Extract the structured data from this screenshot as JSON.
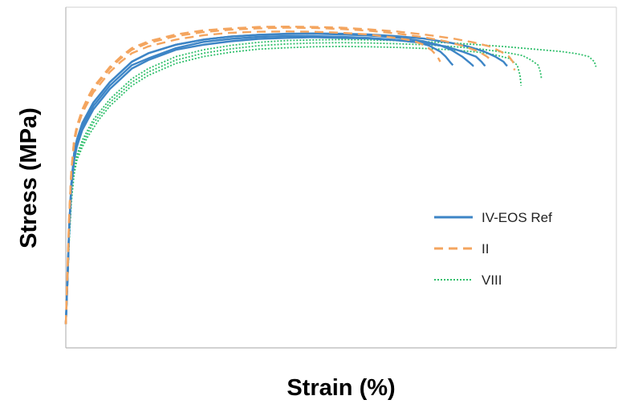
{
  "colors": {
    "IV-EOS Ref": "#3d85c6",
    "II": "#f4a55f",
    "VIII": "#2fbf6b"
  },
  "chart_data": {
    "type": "line",
    "title": "",
    "xlabel": "Strain (%)",
    "ylabel": "Stress (MPa)",
    "x_ticks": "none",
    "y_ticks": "none",
    "xlim": [
      0,
      100
    ],
    "ylim": [
      0,
      100
    ],
    "grid": false,
    "legend_position": "right",
    "series": [
      {
        "name": "IV-EOS Ref",
        "style": "solid",
        "specimens": [
          {
            "x": [
              0,
              0.3,
              0.6,
              1,
              1.5,
              2,
              3,
              4,
              5,
              6,
              8,
              10,
              12,
              15,
              20,
              25,
              30,
              35,
              40,
              45,
              50,
              55,
              60,
              64,
              66,
              68,
              69,
              70,
              70.3
            ],
            "y": [
              7,
              20,
              35,
              48,
              56,
              60,
              65,
              68,
              71,
              73,
              77,
              80,
              83,
              85,
              88,
              89.8,
              90.7,
              91.3,
              91.5,
              91.5,
              91.3,
              91,
              90.4,
              89.7,
              88.7,
              87,
              85.5,
              83.5,
              83
            ]
          },
          {
            "x": [
              0,
              0.3,
              0.6,
              1,
              1.5,
              2,
              3,
              4,
              5,
              6,
              8,
              10,
              12,
              15,
              20,
              25,
              30,
              35,
              40,
              45,
              50,
              55,
              60,
              65,
              68,
              70,
              72,
              73.5,
              74,
              74.1
            ],
            "y": [
              7,
              20,
              35,
              48,
              57,
              61,
              66,
              69,
              72,
              74,
              78,
              81,
              84,
              86.5,
              89,
              90.5,
              91.4,
              91.9,
              92.1,
              92.2,
              92,
              91.7,
              91.1,
              90,
              88.8,
              87.5,
              85.5,
              83.5,
              82.8,
              82.8
            ]
          },
          {
            "x": [
              0,
              0.3,
              0.6,
              1,
              1.5,
              2,
              3,
              4,
              5,
              6,
              8,
              10,
              12,
              15,
              20,
              25,
              30,
              35,
              40,
              45,
              50,
              55,
              60,
              65,
              69,
              72,
              74.5,
              75.5,
              76,
              76.2
            ],
            "y": [
              7,
              20,
              34,
              47,
              55,
              59,
              64,
              67,
              70,
              72,
              76,
              79,
              82,
              84.5,
              87.5,
              89,
              90,
              90.7,
              91,
              91.2,
              91,
              90.8,
              90.3,
              89.5,
              88.5,
              87,
              85.5,
              84,
              83,
              82.8
            ]
          },
          {
            "x": [
              0,
              0.3,
              0.6,
              1,
              1.5,
              2,
              3,
              4,
              5,
              6,
              8,
              10,
              12,
              15,
              20,
              25,
              30,
              35,
              40,
              45,
              50,
              55,
              60,
              65,
              70,
              73,
              76,
              78,
              79.5,
              80,
              80.2
            ],
            "y": [
              7,
              20,
              35,
              48,
              57,
              61,
              66,
              69,
              72,
              74,
              78,
              81,
              84,
              86.5,
              89,
              90.5,
              91.4,
              91.9,
              92.2,
              92.3,
              92.2,
              92,
              91.5,
              90.8,
              89.5,
              88.5,
              87,
              85.5,
              84,
              83,
              82.8
            ]
          }
        ]
      },
      {
        "name": "II",
        "style": "dashed",
        "specimens": [
          {
            "x": [
              0,
              0.3,
              0.6,
              1,
              1.5,
              2,
              3,
              4,
              5,
              6,
              8,
              10,
              12,
              15,
              20,
              25,
              30,
              35,
              40,
              45,
              50,
              55,
              60,
              63,
              65,
              66.5,
              67.5,
              68
            ],
            "y": [
              7,
              22,
              38,
              52,
              60,
              64,
              69,
              72,
              75,
              77,
              81,
              84,
              86.5,
              88.5,
              90.5,
              91.8,
              92.5,
              92.8,
              92.9,
              92.8,
              92.5,
              92,
              91,
              90.2,
              89,
              87.3,
              85.5,
              84
            ]
          },
          {
            "x": [
              0,
              0.3,
              0.6,
              1,
              1.5,
              2,
              3,
              4,
              5,
              6,
              8,
              10,
              12,
              15,
              20,
              25,
              30,
              35,
              40,
              45,
              50,
              55,
              60,
              65,
              69,
              72,
              75,
              76.5,
              77.2
            ],
            "y": [
              7,
              22,
              38,
              52,
              61,
              65,
              70,
              73,
              76,
              78,
              82,
              85,
              87.5,
              89.5,
              91.5,
              92.7,
              93.4,
              93.8,
              94,
              93.9,
              93.6,
              93.1,
              92.3,
              91.2,
              90,
              88.7,
              87,
              85.5,
              84.5
            ]
          },
          {
            "x": [
              0,
              0.3,
              0.6,
              1,
              1.5,
              2,
              3,
              4,
              5,
              6,
              8,
              10,
              12,
              15,
              20,
              25,
              30,
              35,
              40,
              45,
              50,
              55,
              60,
              65,
              70,
              74,
              77,
              79,
              80.5,
              81.2,
              81.5
            ],
            "y": [
              7,
              22,
              38,
              52,
              61,
              65,
              70,
              73.5,
              76.5,
              78.5,
              82.5,
              85.5,
              88,
              90,
              92,
              93.2,
              93.8,
              94.2,
              94.3,
              94.2,
              94,
              93.5,
              92.9,
              92,
              90.9,
              89.7,
              88.5,
              87,
              85.5,
              84,
              81.5
            ]
          }
        ]
      },
      {
        "name": "VIII",
        "style": "dotted",
        "specimens": [
          {
            "x": [
              0,
              0.3,
              0.6,
              1,
              1.5,
              2,
              3,
              4,
              5,
              6,
              8,
              10,
              12,
              15,
              20,
              25,
              30,
              35,
              40,
              45,
              50,
              55,
              60,
              65,
              70,
              75,
              78,
              80.5,
              82,
              82.5,
              82.7
            ],
            "y": [
              7,
              18,
              31,
              43,
              51,
              55,
              59,
              62,
              64.5,
              67,
              71,
              74,
              77,
              80,
              83.5,
              85.5,
              86.8,
              87.7,
              88.1,
              88.4,
              88.5,
              88.4,
              88.2,
              87.9,
              87.5,
              86.8,
              86,
              85,
              83,
              80,
              77
            ]
          },
          {
            "x": [
              0,
              0.3,
              0.6,
              1,
              1.5,
              2,
              3,
              4,
              5,
              6,
              8,
              10,
              12,
              15,
              20,
              25,
              30,
              35,
              40,
              45,
              50,
              55,
              60,
              65,
              70,
              75,
              80,
              83,
              84.5,
              85.8,
              86.2,
              86.4
            ],
            "y": [
              7,
              18,
              31,
              43,
              51,
              56,
              60,
              63,
              66,
              68,
              72,
              75,
              78,
              81,
              84.5,
              86.5,
              87.8,
              88.7,
              89.2,
              89.5,
              89.6,
              89.5,
              89.3,
              89,
              88.5,
              87.8,
              86.7,
              85.8,
              84.5,
              83,
              81,
              79
            ]
          },
          {
            "x": [
              0,
              0.3,
              0.6,
              1,
              1.5,
              2,
              3,
              4,
              5,
              6,
              8,
              10,
              12,
              15,
              20,
              25,
              30,
              35,
              40,
              45,
              50,
              55,
              60,
              65,
              70,
              75,
              80,
              85,
              90,
              93,
              95,
              96,
              96.3
            ],
            "y": [
              7,
              19,
              32,
              44,
              52,
              56.5,
              61,
              64,
              67,
              69,
              73,
              76,
              79,
              82,
              85.5,
              87.5,
              88.8,
              89.7,
              90.2,
              90.4,
              90.5,
              90.4,
              90.2,
              89.9,
              89.5,
              89,
              88.4,
              87.7,
              87,
              86.3,
              85.5,
              84,
              82.5
            ]
          }
        ]
      }
    ]
  }
}
